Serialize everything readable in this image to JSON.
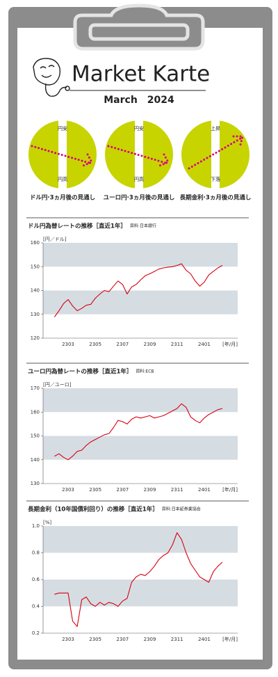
{
  "header": {
    "title": "Market Karte",
    "subtitle": "March　2024"
  },
  "outlooks": [
    {
      "top": "円安",
      "bottom": "円高",
      "label": "ドル円·3ヵ月後の見通し"
    },
    {
      "top": "円安",
      "bottom": "円高",
      "label": "ユーロ円·3ヵ月後の見通し"
    },
    {
      "top": "上昇",
      "bottom": "下落",
      "label": "長期金利·3ヵ月後の見通し"
    }
  ],
  "chart_data": [
    {
      "type": "line",
      "title": "ドル円為替レートの推移［直近1年］",
      "source": "資料:日本銀行",
      "ylabel": "[円／ドル]",
      "xlabel": "[年/月]",
      "categories": [
        null,
        null,
        null,
        "2303",
        null,
        null,
        null,
        null,
        null,
        "2305",
        null,
        null,
        null,
        null,
        null,
        "2307",
        null,
        null,
        null,
        null,
        null,
        "2309",
        null,
        null,
        null,
        null,
        null,
        "2311",
        null,
        null,
        null,
        null,
        null,
        "2401",
        null,
        null,
        null,
        null
      ],
      "series": [
        {
          "color": "#d7000f",
          "values": [
            128.9,
            131.5,
            134.5,
            136.2,
            133.5,
            131.5,
            132.5,
            133.8,
            134.2,
            136.8,
            138.5,
            140.0,
            139.5,
            141.8,
            144.0,
            142.5,
            138.5,
            141.5,
            142.5,
            144.5,
            146.2,
            147.0,
            148.0,
            149.0,
            149.5,
            149.8,
            150.0,
            150.5,
            151.2,
            148.5,
            147.0,
            144.0,
            141.8,
            143.5,
            146.5,
            148.0,
            149.5,
            150.5
          ]
        }
      ],
      "ylim": [
        120,
        160
      ],
      "yticks": [
        120,
        130,
        140,
        150,
        160
      ],
      "grid_bands": true
    },
    {
      "type": "line",
      "title": "ユーロ円為替レートの推移［直近1年］",
      "source": "資料:ECB",
      "ylabel": "[円／ユーロ]",
      "xlabel": "[年/月]",
      "categories": [
        null,
        null,
        null,
        "2303",
        null,
        null,
        null,
        null,
        null,
        "2305",
        null,
        null,
        null,
        null,
        null,
        "2307",
        null,
        null,
        null,
        null,
        null,
        "2309",
        null,
        null,
        null,
        null,
        null,
        "2311",
        null,
        null,
        null,
        null,
        null,
        "2401",
        null,
        null,
        null,
        null
      ],
      "series": [
        {
          "color": "#d7000f",
          "values": [
            141.5,
            142.5,
            141.0,
            140.0,
            141.5,
            143.5,
            144.0,
            146.0,
            147.5,
            148.5,
            149.5,
            150.5,
            151.0,
            153.5,
            156.5,
            156.0,
            155.0,
            157.0,
            158.0,
            157.5,
            158.0,
            158.5,
            157.5,
            158.0,
            158.5,
            159.5,
            160.5,
            161.5,
            163.5,
            162.0,
            158.0,
            156.5,
            155.5,
            157.5,
            159.0,
            160.0,
            161.0,
            161.5
          ]
        }
      ],
      "ylim": [
        130,
        170
      ],
      "yticks": [
        130,
        140,
        150,
        160,
        170
      ],
      "grid_bands": true
    },
    {
      "type": "line",
      "title": "長期金利（10年国債利回り）の推移［直近1年］",
      "source": "資料:日本証券業協会",
      "ylabel": "[%]",
      "xlabel": "[年/月]",
      "categories": [
        null,
        null,
        null,
        "2303",
        null,
        null,
        null,
        null,
        null,
        "2305",
        null,
        null,
        null,
        null,
        null,
        "2307",
        null,
        null,
        null,
        null,
        null,
        "2309",
        null,
        null,
        null,
        null,
        null,
        "2311",
        null,
        null,
        null,
        null,
        null,
        "2401",
        null,
        null,
        null,
        null
      ],
      "series": [
        {
          "color": "#d7000f",
          "values": [
            0.49,
            0.5,
            0.5,
            0.5,
            0.29,
            0.25,
            0.45,
            0.47,
            0.42,
            0.4,
            0.43,
            0.41,
            0.43,
            0.42,
            0.4,
            0.44,
            0.46,
            0.58,
            0.62,
            0.64,
            0.63,
            0.66,
            0.7,
            0.75,
            0.78,
            0.8,
            0.86,
            0.95,
            0.9,
            0.8,
            0.72,
            0.67,
            0.62,
            0.6,
            0.58,
            0.66,
            0.7,
            0.73
          ]
        }
      ],
      "ylim": [
        0.2,
        1.0
      ],
      "yticks": [
        0.2,
        0.4,
        0.6,
        0.8,
        {
          "value": 1.0,
          "label": "1.0"
        }
      ],
      "grid_bands": true
    }
  ]
}
